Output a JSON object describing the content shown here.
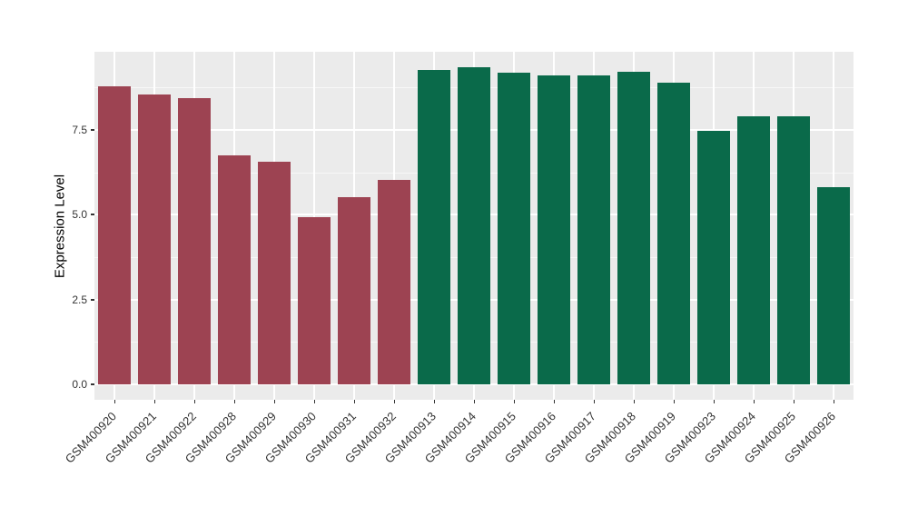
{
  "figure": {
    "background": "#FFFFFF",
    "panel_background": "#EBEBEB",
    "grid_major_color": "#FFFFFF",
    "grid_minor_color": "rgba(255,255,255,0.6)",
    "axis_text_color": "#333333",
    "tick_color": "#333333"
  },
  "chart_data": {
    "type": "bar",
    "title": "",
    "xlabel": "",
    "ylabel": "Expression Level",
    "categories": [
      "GSM400920",
      "GSM400921",
      "GSM400922",
      "GSM400928",
      "GSM400929",
      "GSM400930",
      "GSM400931",
      "GSM400932",
      "GSM400913",
      "GSM400914",
      "GSM400915",
      "GSM400916",
      "GSM400917",
      "GSM400918",
      "GSM400919",
      "GSM400923",
      "GSM400924",
      "GSM400925",
      "GSM400926"
    ],
    "values": [
      8.78,
      8.55,
      8.43,
      6.75,
      6.57,
      4.92,
      5.51,
      6.03,
      9.28,
      9.35,
      9.2,
      9.12,
      9.11,
      9.21,
      8.9,
      7.48,
      7.9,
      7.91,
      5.82
    ],
    "bar_colors": [
      "#9D4352",
      "#9D4352",
      "#9D4352",
      "#9D4352",
      "#9D4352",
      "#9D4352",
      "#9D4352",
      "#9D4352",
      "#0A6A4A",
      "#0A6A4A",
      "#0A6A4A",
      "#0A6A4A",
      "#0A6A4A",
      "#0A6A4A",
      "#0A6A4A",
      "#0A6A4A",
      "#0A6A4A",
      "#0A6A4A",
      "#0A6A4A"
    ],
    "groups": [
      {
        "name": "group-red",
        "color": "#9D4352",
        "categories": [
          "GSM400920",
          "GSM400921",
          "GSM400922",
          "GSM400928",
          "GSM400929",
          "GSM400930",
          "GSM400931",
          "GSM400932"
        ]
      },
      {
        "name": "group-green",
        "color": "#0A6A4A",
        "categories": [
          "GSM400913",
          "GSM400914",
          "GSM400915",
          "GSM400916",
          "GSM400917",
          "GSM400918",
          "GSM400919",
          "GSM400923",
          "GSM400924",
          "GSM400925",
          "GSM400926"
        ]
      }
    ],
    "y_ticks": [
      0,
      2.5,
      5,
      7.5
    ],
    "y_tick_labels": [
      "0.0",
      "2.5",
      "5.0",
      "7.5"
    ],
    "y_minor_ticks": [
      1.25,
      3.75,
      6.25,
      8.75
    ],
    "ylim": [
      -0.47,
      9.81
    ],
    "grid": true,
    "legend": "none",
    "x_tick_angle": -45
  }
}
